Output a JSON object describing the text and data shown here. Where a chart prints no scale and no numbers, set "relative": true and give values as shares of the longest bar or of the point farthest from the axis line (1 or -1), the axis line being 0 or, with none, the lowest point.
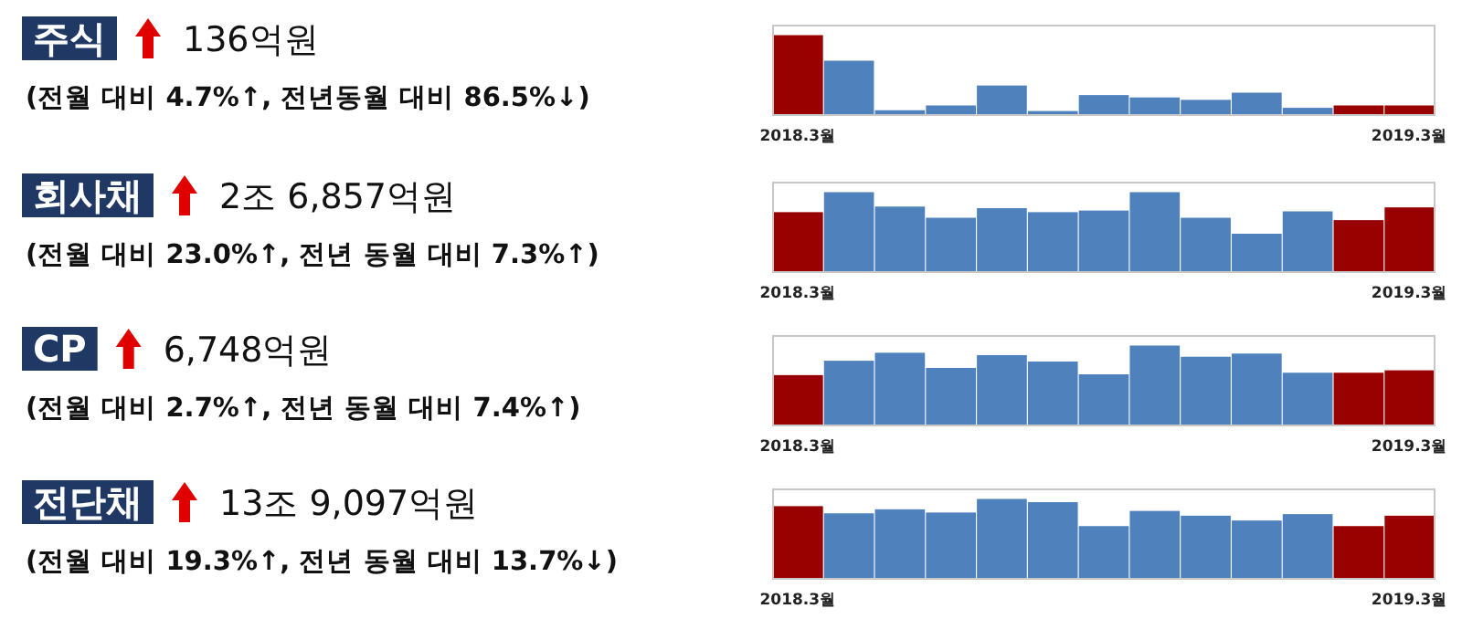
{
  "chart_data": [
    {
      "type": "bar",
      "annotations": [
        "주식",
        "136억원",
        "(전월 대비 4.7%↑, 전년동월 대비 86.5%↓)"
      ],
      "relative": true,
      "categories": [
        "2018.3월",
        null,
        null,
        null,
        null,
        null,
        null,
        null,
        null,
        null,
        null,
        null,
        "2019.3월"
      ],
      "values": [
        1,
        0.68,
        0.06,
        0.12,
        0.37,
        0.05,
        0.25,
        0.22,
        0.19,
        0.28,
        0.09,
        0.12,
        0.12
      ],
      "colors": [
        "#990000",
        "#4f81bd",
        "#4f81bd",
        "#4f81bd",
        "#4f81bd",
        "#4f81bd",
        "#4f81bd",
        "#4f81bd",
        "#4f81bd",
        "#4f81bd",
        "#4f81bd",
        "#990000",
        "#990000"
      ]
    },
    {
      "type": "bar",
      "annotations": [
        "회사채",
        "2조 6,857억원",
        "(전월 대비 23.0%↑, 전년 동월 대비 7.3%↑)"
      ],
      "relative": true,
      "categories": [
        "2018.3월",
        null,
        null,
        null,
        null,
        null,
        null,
        null,
        null,
        null,
        null,
        null,
        "2019.3월"
      ],
      "values": [
        0.75,
        1,
        0.82,
        0.68,
        0.8,
        0.75,
        0.77,
        1,
        0.68,
        0.48,
        0.76,
        0.65,
        0.81
      ],
      "colors": [
        "#990000",
        "#4f81bd",
        "#4f81bd",
        "#4f81bd",
        "#4f81bd",
        "#4f81bd",
        "#4f81bd",
        "#4f81bd",
        "#4f81bd",
        "#4f81bd",
        "#4f81bd",
        "#990000",
        "#990000"
      ]
    },
    {
      "type": "bar",
      "annotations": [
        "CP",
        "6,748억원",
        "(전월 대비 2.7%↑, 전년 동월 대비 7.4%↑)"
      ],
      "relative": true,
      "categories": [
        "2018.3월",
        null,
        null,
        null,
        null,
        null,
        null,
        null,
        null,
        null,
        null,
        null,
        "2019.3월"
      ],
      "values": [
        0.63,
        0.81,
        0.91,
        0.72,
        0.88,
        0.8,
        0.64,
        1,
        0.86,
        0.9,
        0.66,
        0.66,
        0.69
      ],
      "colors": [
        "#990000",
        "#4f81bd",
        "#4f81bd",
        "#4f81bd",
        "#4f81bd",
        "#4f81bd",
        "#4f81bd",
        "#4f81bd",
        "#4f81bd",
        "#4f81bd",
        "#4f81bd",
        "#990000",
        "#990000"
      ]
    },
    {
      "type": "bar",
      "annotations": [
        "전단채",
        "13조 9,097억원",
        "(전월 대비 19.3%↑, 전년 동월 대비 13.7%↓)"
      ],
      "relative": true,
      "categories": [
        "2018.3월",
        null,
        null,
        null,
        null,
        null,
        null,
        null,
        null,
        null,
        null,
        null,
        "2019.3월"
      ],
      "values": [
        0.91,
        0.82,
        0.87,
        0.83,
        1,
        0.96,
        0.66,
        0.85,
        0.79,
        0.73,
        0.81,
        0.66,
        0.79
      ],
      "colors": [
        "#990000",
        "#4f81bd",
        "#4f81bd",
        "#4f81bd",
        "#4f81bd",
        "#4f81bd",
        "#4f81bd",
        "#4f81bd",
        "#4f81bd",
        "#4f81bd",
        "#4f81bd",
        "#990000",
        "#990000"
      ]
    }
  ]
}
